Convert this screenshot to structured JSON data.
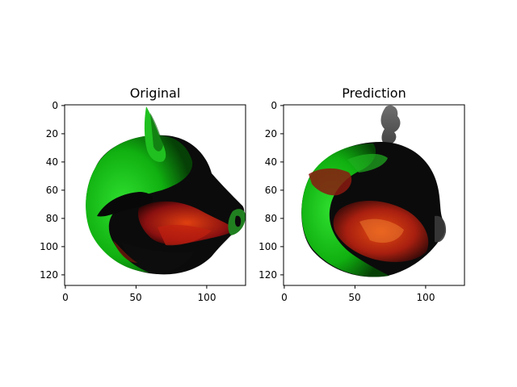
{
  "panels": [
    {
      "title": "Original",
      "x_ticks": [
        "0",
        "50",
        "100"
      ],
      "y_ticks": [
        "0",
        "20",
        "40",
        "60",
        "80",
        "100",
        "120"
      ]
    },
    {
      "title": "Prediction",
      "x_ticks": [
        "0",
        "50",
        "100"
      ],
      "y_ticks": [
        "0",
        "20",
        "40",
        "60",
        "80",
        "100",
        "120"
      ]
    }
  ],
  "colors": {
    "green": "#10c810",
    "dark": "#0a0a0a",
    "red": "#a01010"
  }
}
